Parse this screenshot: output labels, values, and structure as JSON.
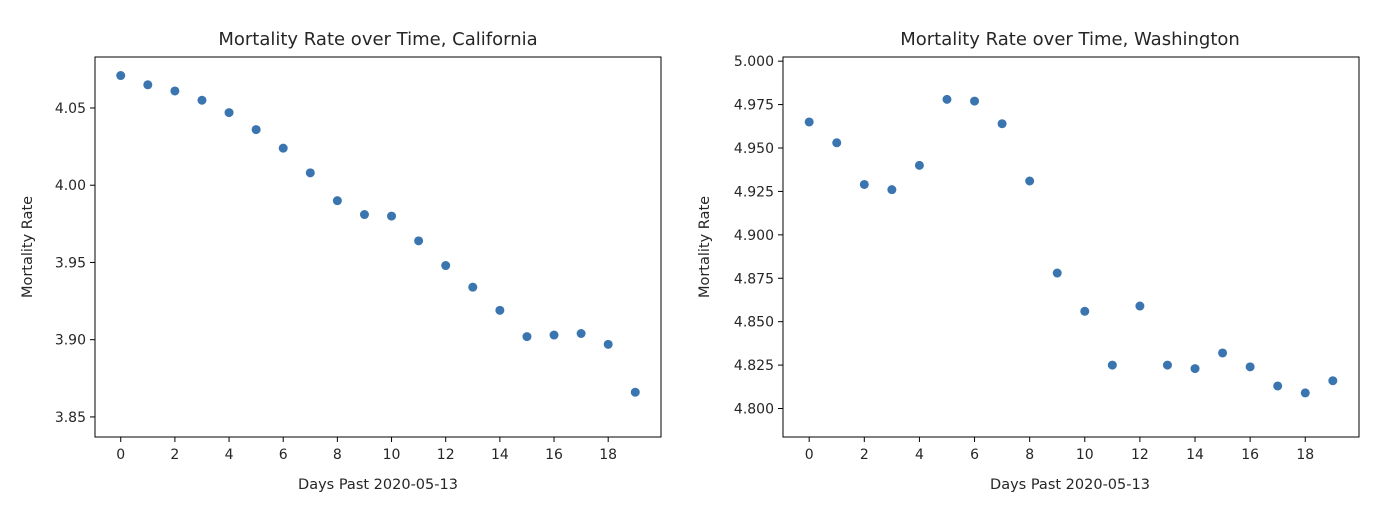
{
  "chart_data": [
    {
      "type": "scatter",
      "title": "Mortality Rate over Time, California",
      "xlabel": "Days Past 2020-05-13",
      "ylabel": "Mortality Rate",
      "xlim": [
        -0.95,
        19.95
      ],
      "ylim": [
        3.837,
        4.083
      ],
      "xticks": [
        0,
        2,
        4,
        6,
        8,
        10,
        12,
        14,
        16,
        18
      ],
      "yticks": [
        3.85,
        3.9,
        3.95,
        4.0,
        4.05
      ],
      "ytick_decimals": 2,
      "grid": false,
      "marker_color": "#3a75b0",
      "x": [
        0,
        1,
        2,
        3,
        4,
        5,
        6,
        7,
        8,
        9,
        10,
        11,
        12,
        13,
        14,
        15,
        16,
        17,
        18,
        19
      ],
      "y": [
        4.071,
        4.065,
        4.061,
        4.055,
        4.047,
        4.036,
        4.024,
        4.008,
        3.99,
        3.981,
        3.98,
        3.964,
        3.948,
        3.934,
        3.919,
        3.902,
        3.903,
        3.904,
        3.897,
        3.866
      ]
    },
    {
      "type": "scatter",
      "title": "Mortality Rate over Time, Washington",
      "xlabel": "Days Past 2020-05-13",
      "ylabel": "Mortality Rate",
      "xlim": [
        -0.95,
        19.95
      ],
      "ylim": [
        4.7836,
        5.0024
      ],
      "xticks": [
        0,
        2,
        4,
        6,
        8,
        10,
        12,
        14,
        16,
        18
      ],
      "yticks": [
        4.8,
        4.825,
        4.85,
        4.875,
        4.9,
        4.925,
        4.95,
        4.975,
        5.0
      ],
      "ytick_decimals": 3,
      "grid": false,
      "marker_color": "#3a75b0",
      "x": [
        0,
        1,
        2,
        3,
        4,
        5,
        6,
        7,
        8,
        9,
        10,
        11,
        12,
        13,
        14,
        15,
        16,
        17,
        18,
        19
      ],
      "y": [
        4.965,
        4.953,
        4.929,
        4.926,
        4.94,
        4.978,
        4.977,
        4.964,
        4.931,
        4.878,
        4.856,
        4.825,
        4.859,
        4.825,
        4.823,
        4.832,
        4.824,
        4.813,
        4.809,
        4.816
      ]
    }
  ]
}
